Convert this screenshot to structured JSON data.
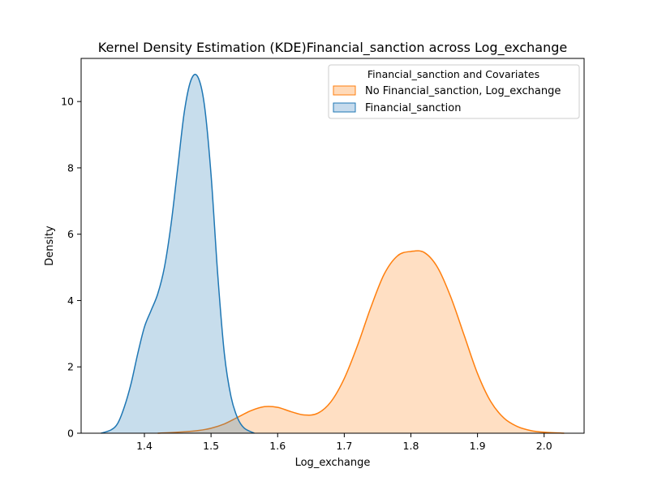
{
  "chart_data": {
    "type": "area",
    "title": "Kernel Density Estimation (KDE)Financial_sanction across Log_exchange",
    "xlabel": "Log_exchange",
    "ylabel": "Density",
    "xlim": [
      1.305,
      2.06
    ],
    "ylim": [
      0,
      11.3
    ],
    "xticks": [
      1.4,
      1.5,
      1.6,
      1.7,
      1.8,
      1.9,
      2.0
    ],
    "xtick_labels": [
      "1.4",
      "1.5",
      "1.6",
      "1.7",
      "1.8",
      "1.9",
      "2.0"
    ],
    "yticks": [
      0,
      2,
      4,
      6,
      8,
      10
    ],
    "ytick_labels": [
      "0",
      "2",
      "4",
      "6",
      "8",
      "10"
    ],
    "grid": false,
    "legend": {
      "title": "Financial_sanction and Covariates",
      "position": "top-right"
    },
    "series": [
      {
        "name": "No Financial_sanction, Log_exchange",
        "color": "#ff7f0e",
        "fill": "#ffdab9",
        "x": [
          1.42,
          1.45,
          1.48,
          1.5,
          1.52,
          1.54,
          1.56,
          1.58,
          1.6,
          1.62,
          1.64,
          1.66,
          1.68,
          1.7,
          1.72,
          1.74,
          1.76,
          1.78,
          1.8,
          1.82,
          1.84,
          1.86,
          1.88,
          1.9,
          1.92,
          1.94,
          1.96,
          1.98,
          2.0,
          2.03
        ],
        "y": [
          0.0,
          0.03,
          0.08,
          0.15,
          0.28,
          0.48,
          0.68,
          0.8,
          0.78,
          0.65,
          0.55,
          0.6,
          0.95,
          1.65,
          2.65,
          3.8,
          4.8,
          5.35,
          5.48,
          5.45,
          5.0,
          4.1,
          2.95,
          1.8,
          0.95,
          0.45,
          0.2,
          0.08,
          0.03,
          0.0
        ]
      },
      {
        "name": "Financial_sanction",
        "color": "#1f77b4",
        "fill": "#c6dbed",
        "x": [
          1.335,
          1.35,
          1.36,
          1.37,
          1.38,
          1.39,
          1.4,
          1.41,
          1.42,
          1.43,
          1.44,
          1.45,
          1.46,
          1.47,
          1.48,
          1.49,
          1.5,
          1.51,
          1.52,
          1.53,
          1.54,
          1.55,
          1.565
        ],
        "y": [
          0.0,
          0.1,
          0.3,
          0.8,
          1.5,
          2.4,
          3.2,
          3.7,
          4.2,
          5.0,
          6.3,
          8.0,
          9.7,
          10.65,
          10.75,
          9.9,
          7.8,
          4.8,
          2.4,
          1.1,
          0.45,
          0.15,
          0.0
        ]
      }
    ]
  }
}
